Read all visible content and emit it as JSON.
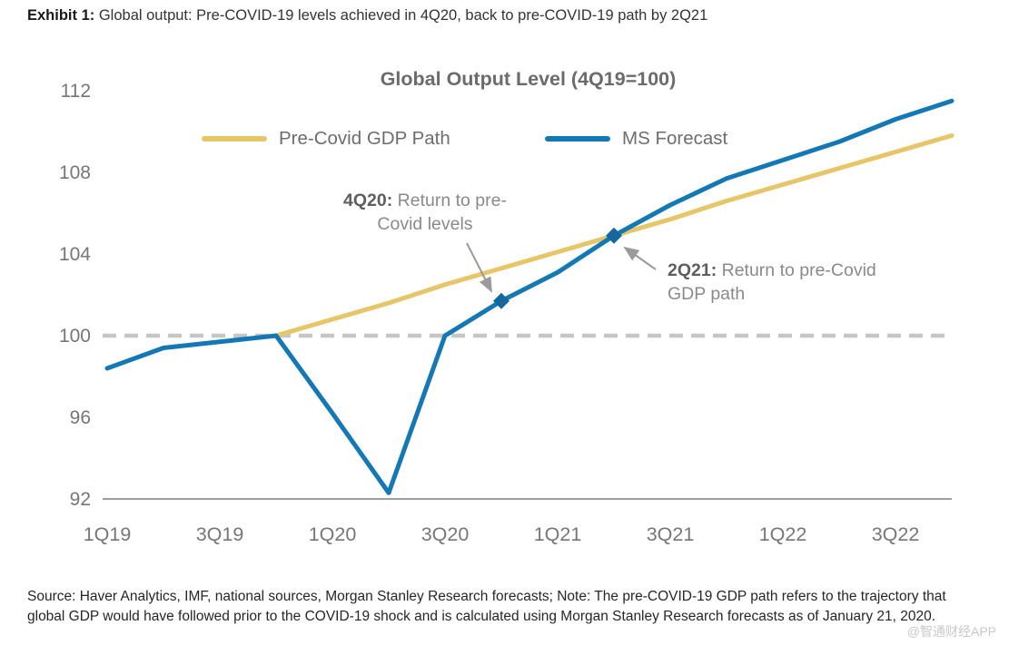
{
  "page": {
    "exhibit_label": "Exhibit 1:",
    "exhibit_title": " Global output: Pre-COVID-19 levels achieved in 4Q20, back to pre-COVID-19 path by 2Q21",
    "source_note": "Source: Haver Analytics, IMF, national sources, Morgan Stanley Research forecasts; Note: The pre-COVID-19 GDP path refers to the trajectory that global GDP would have followed prior to the COVID-19 shock and is calculated using Morgan Stanley Research forecasts as of January 21, 2020.",
    "watermark": "@智通财经APP"
  },
  "chart_data": {
    "type": "line",
    "title": "Global Output Level (4Q19=100)",
    "x_ticks": [
      "1Q19",
      "3Q19",
      "1Q20",
      "3Q20",
      "1Q21",
      "3Q21",
      "1Q22",
      "3Q22"
    ],
    "y_ticks": [
      112,
      108,
      104,
      100,
      96,
      92
    ],
    "ylim": [
      92,
      112
    ],
    "grid": false,
    "legend_position": "top-inside",
    "x_quarters": [
      "1Q19",
      "2Q19",
      "3Q19",
      "4Q19",
      "1Q20",
      "2Q20",
      "3Q20",
      "4Q20",
      "1Q21",
      "2Q21",
      "3Q21",
      "4Q21",
      "1Q22",
      "2Q22",
      "3Q22",
      "4Q22"
    ],
    "baseline": {
      "value": 100,
      "style": "dashed",
      "color": "#c6c6c6"
    },
    "series": [
      {
        "name": "Pre-Covid GDP Path",
        "color": "#e6c669",
        "start_index": 3,
        "values": [
          100,
          100.8,
          101.6,
          102.5,
          103.3,
          104.1,
          104.9,
          105.7,
          106.6,
          107.4,
          108.2,
          109.0,
          109.8
        ]
      },
      {
        "name": "MS Forecast",
        "color": "#1478b4",
        "start_index": 0,
        "values": [
          98.4,
          99.4,
          99.7,
          100,
          96.2,
          92.3,
          100,
          101.7,
          103.1,
          104.9,
          106.4,
          107.7,
          108.6,
          109.5,
          110.6,
          111.5
        ]
      }
    ],
    "markers": [
      {
        "quarter": "4Q20",
        "index": 7,
        "value": 101.7
      },
      {
        "quarter": "2Q21",
        "index": 9,
        "value": 104.9
      }
    ],
    "annotations": [
      {
        "bold": "4Q20:",
        "rest": " Return to pre-Covid levels"
      },
      {
        "bold": "2Q21:",
        "rest": " Return to pre-Covid GDP path"
      }
    ],
    "legend": [
      {
        "label": "Pre-Covid GDP Path",
        "color": "#e6c669"
      },
      {
        "label": "MS Forecast",
        "color": "#1478b4"
      }
    ]
  }
}
